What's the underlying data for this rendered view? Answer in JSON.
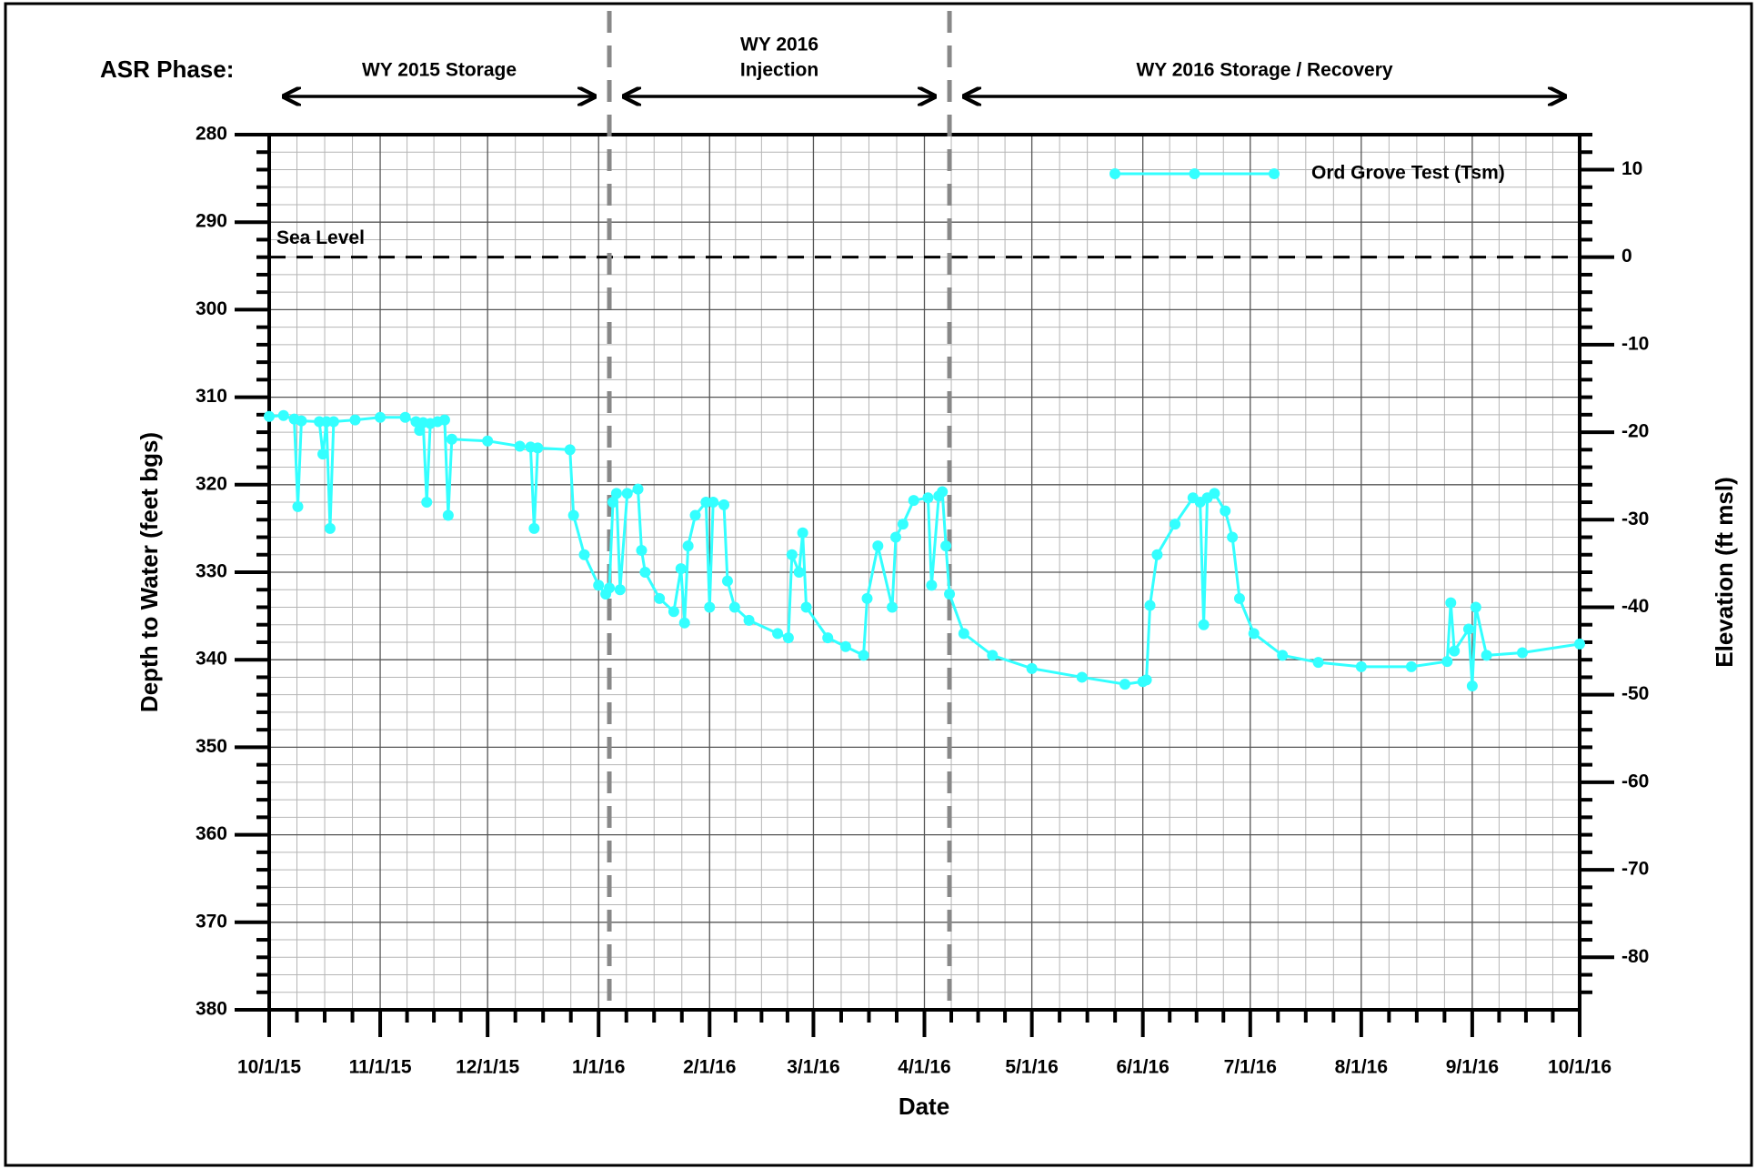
{
  "chart_data": {
    "type": "line",
    "header_label": "ASR Phase:",
    "phases": [
      {
        "label": [
          "WY 2015 Storage"
        ]
      },
      {
        "label": [
          "WY 2016",
          "Injection"
        ]
      },
      {
        "label": [
          "WY 2016 Storage / Recovery"
        ]
      }
    ],
    "phase_boundaries": [
      "1/4/16",
      "4/8/16"
    ],
    "x_label": "Date",
    "y_label": "Depth to Water (feet bgs)",
    "y2_label": "Elevation (ft msl)",
    "xlim": [
      "10/1/15",
      "10/1/16"
    ],
    "xticks": [
      "10/1/15",
      "11/1/15",
      "12/1/15",
      "1/1/16",
      "2/1/16",
      "3/1/16",
      "4/1/16",
      "5/1/16",
      "6/1/16",
      "7/1/16",
      "8/1/16",
      "9/1/16",
      "10/1/16"
    ],
    "ylim": [
      280,
      380
    ],
    "yticks": [
      280,
      290,
      300,
      310,
      320,
      330,
      340,
      350,
      360,
      370,
      380
    ],
    "y2lim": [
      14,
      -86
    ],
    "y2ticks": [
      10,
      0,
      -10,
      -20,
      -30,
      -40,
      -50,
      -60,
      -70,
      -80
    ],
    "grid": true,
    "legend": "top-right",
    "sea_level": {
      "label": "Sea Level",
      "value": 0
    },
    "x": [
      "10/1/15",
      "10/5/15",
      "10/8/15",
      "10/9/15",
      "10/10/15",
      "10/15/15",
      "10/16/15",
      "10/17/15",
      "10/18/15",
      "10/19/15",
      "10/25/15",
      "11/1/15",
      "11/8/15",
      "11/11/15",
      "11/12/15",
      "11/13/15",
      "11/14/15",
      "11/15/15",
      "11/17/15",
      "11/19/15",
      "11/20/15",
      "11/21/15",
      "12/1/15",
      "12/10/15",
      "12/13/15",
      "12/14/15",
      "12/15/15",
      "12/24/15",
      "12/25/15",
      "12/28/15",
      "1/1/16",
      "1/3/16",
      "1/4/16",
      "1/5/16",
      "1/6/16",
      "1/7/16",
      "1/9/16",
      "1/12/16",
      "1/13/16",
      "1/14/16",
      "1/18/16",
      "1/22/16",
      "1/24/16",
      "1/25/16",
      "1/26/16",
      "1/28/16",
      "1/31/16",
      "2/1/16",
      "2/2/16",
      "2/5/16",
      "2/6/16",
      "2/8/16",
      "2/12/16",
      "2/20/16",
      "2/23/16",
      "2/24/16",
      "2/26/16",
      "2/27/16",
      "2/28/16",
      "3/5/16",
      "3/10/16",
      "3/15/16",
      "3/16/16",
      "3/19/16",
      "3/23/16",
      "3/24/16",
      "3/26/16",
      "3/29/16",
      "4/2/16",
      "4/3/16",
      "4/5/16",
      "4/6/16",
      "4/7/16",
      "4/8/16",
      "4/12/16",
      "4/20/16",
      "5/1/16",
      "5/15/16",
      "5/27/16",
      "6/1/16",
      "6/2/16",
      "6/3/16",
      "6/5/16",
      "6/10/16",
      "6/15/16",
      "6/17/16",
      "6/18/16",
      "6/19/16",
      "6/21/16",
      "6/24/16",
      "6/26/16",
      "6/28/16",
      "7/2/16",
      "7/10/16",
      "7/20/16",
      "8/1/16",
      "8/15/16",
      "8/25/16",
      "8/26/16",
      "8/27/16",
      "8/31/16",
      "9/1/16",
      "9/2/16",
      "9/5/16",
      "9/15/16",
      "10/1/16"
    ],
    "series": [
      {
        "name": "Ord Grove Test (Tsm)",
        "color": "#33ffff",
        "values": [
          312.2,
          312.1,
          312.5,
          322.5,
          312.7,
          312.8,
          316.5,
          312.8,
          325,
          312.8,
          312.6,
          312.3,
          312.3,
          312.8,
          313.8,
          312.9,
          322,
          313,
          312.8,
          312.6,
          323.5,
          314.8,
          315,
          315.6,
          315.7,
          325,
          315.8,
          316,
          323.5,
          328,
          331.5,
          332.5,
          331.8,
          322,
          321,
          332,
          321,
          320.5,
          327.5,
          330,
          333,
          334.5,
          329.6,
          335.8,
          327,
          323.5,
          322,
          334,
          322,
          322.3,
          331,
          334,
          335.5,
          337,
          337.5,
          328,
          330,
          325.5,
          334,
          337.5,
          338.5,
          339.5,
          333,
          327,
          334,
          326,
          324.5,
          321.8,
          321.5,
          331.5,
          321.3,
          320.8,
          327,
          332.5,
          337,
          339.5,
          341,
          342,
          342.8,
          342.5,
          342.3,
          333.8,
          328,
          324.5,
          321.5,
          322,
          336,
          321.5,
          321,
          323,
          326,
          333,
          337,
          339.5,
          340.3,
          340.8,
          340.8,
          340.2,
          333.5,
          339,
          336.5,
          343,
          334,
          339.5,
          339.2,
          338.2
        ]
      }
    ]
  }
}
